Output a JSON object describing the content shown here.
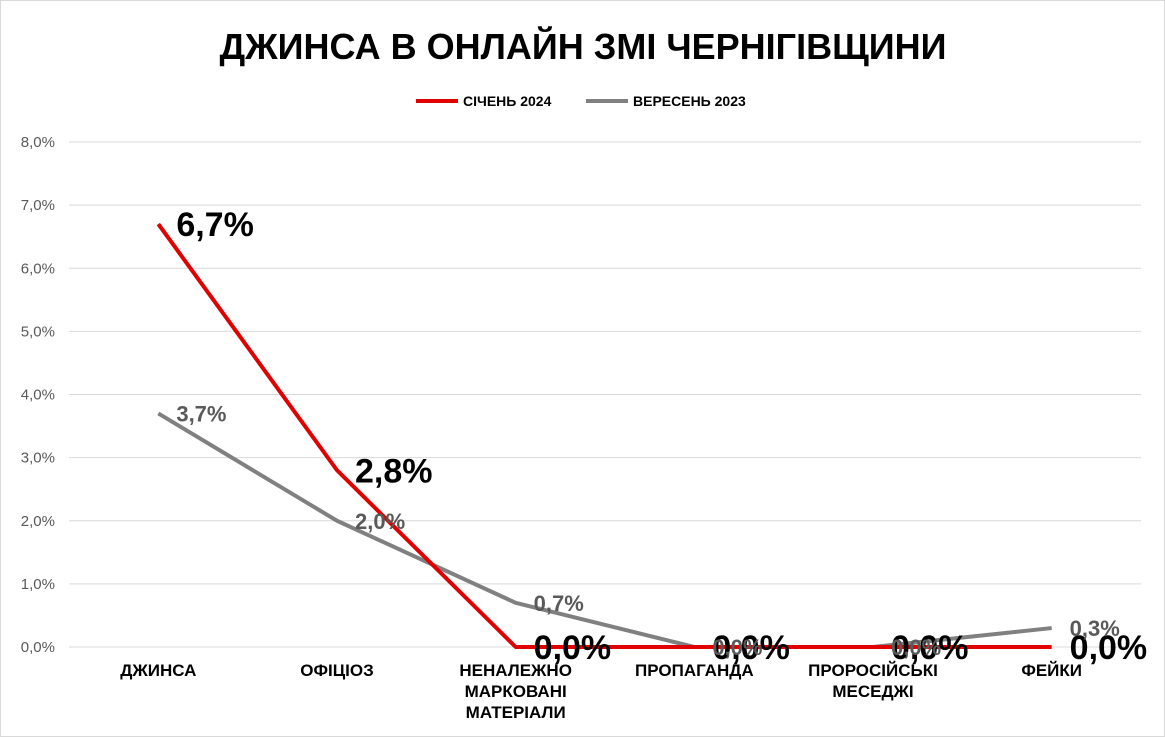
{
  "chart_data": {
    "type": "line",
    "title": "ДЖИНСА В ОНЛАЙН ЗМІ ЧЕРНІГІВЩИНИ",
    "categories": [
      [
        "ДЖИНСА"
      ],
      [
        "ОФІЦІОЗ"
      ],
      [
        "НЕНАЛЕЖНО",
        "МАРКОВАНІ",
        "МАТЕРІАЛИ"
      ],
      [
        "ПРОПАГАНДА"
      ],
      [
        "ПРОРОСІЙСЬКІ",
        "МЕСЕДЖІ"
      ],
      [
        "ФЕЙКИ"
      ]
    ],
    "series": [
      {
        "name": "СІЧЕНЬ 2024",
        "color": "#e00000",
        "values": [
          6.7,
          2.8,
          0.0,
          0.0,
          0.0,
          0.0
        ],
        "labels": [
          "6,7%",
          "2,8%",
          "0,0%",
          "0,0%",
          "0,0%",
          "0,0%"
        ]
      },
      {
        "name": "ВЕРЕСЕНЬ 2023",
        "color": "#808080",
        "values": [
          3.7,
          2.0,
          0.7,
          0.0,
          0.0,
          0.3
        ],
        "labels": [
          "3,7%",
          "2,0%",
          "0,7%",
          "0,0%",
          "0,0%",
          "0,3%"
        ]
      }
    ],
    "ylim": [
      0,
      8
    ],
    "yticks": [
      "0,0%",
      "1,0%",
      "2,0%",
      "3,0%",
      "4,0%",
      "5,0%",
      "6,0%",
      "7,0%",
      "8,0%"
    ],
    "grid": true,
    "legend": "top"
  }
}
